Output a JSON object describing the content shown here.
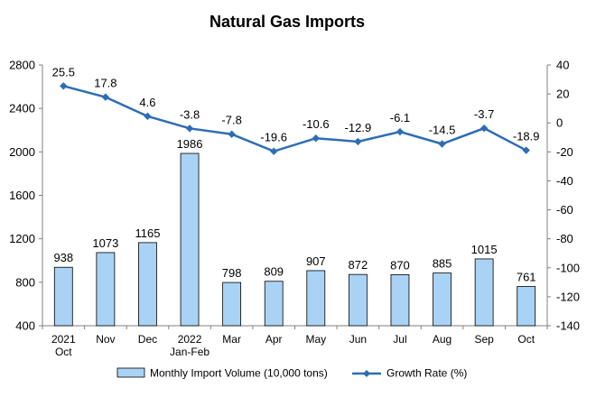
{
  "chart_data": {
    "type": "bar",
    "title": "Natural Gas Imports",
    "categories": [
      "2021\nOct",
      "Nov",
      "Dec",
      "2022\nJan-Feb",
      "Mar",
      "Apr",
      "May",
      "Jun",
      "Jul",
      "Aug",
      "Sep",
      "Oct"
    ],
    "series": [
      {
        "name": "Monthly Import Volume (10,000 tons)",
        "type": "bar",
        "axis": "left",
        "values": [
          938,
          1073,
          1165,
          1986,
          798,
          809,
          907,
          872,
          870,
          885,
          1015,
          761
        ]
      },
      {
        "name": "Growth Rate (%)",
        "type": "line",
        "axis": "right",
        "values": [
          25.5,
          17.8,
          4.6,
          -3.8,
          -7.8,
          -19.6,
          -10.6,
          -12.9,
          -6.1,
          -14.5,
          -3.7,
          -18.9
        ]
      }
    ],
    "y_left": {
      "min": 400,
      "max": 2800,
      "ticks": [
        400,
        800,
        1200,
        1600,
        2000,
        2400,
        2800
      ]
    },
    "y_right": {
      "min": -140,
      "max": 40,
      "ticks": [
        40,
        20,
        0,
        -20,
        -40,
        -60,
        -80,
        -100,
        -120,
        -140
      ]
    },
    "colors": {
      "bar_fill": "#a9d2f5",
      "bar_stroke": "#000000",
      "line": "#2e6db4",
      "axis": "#808080"
    },
    "legend_position": "bottom",
    "grid": false
  }
}
